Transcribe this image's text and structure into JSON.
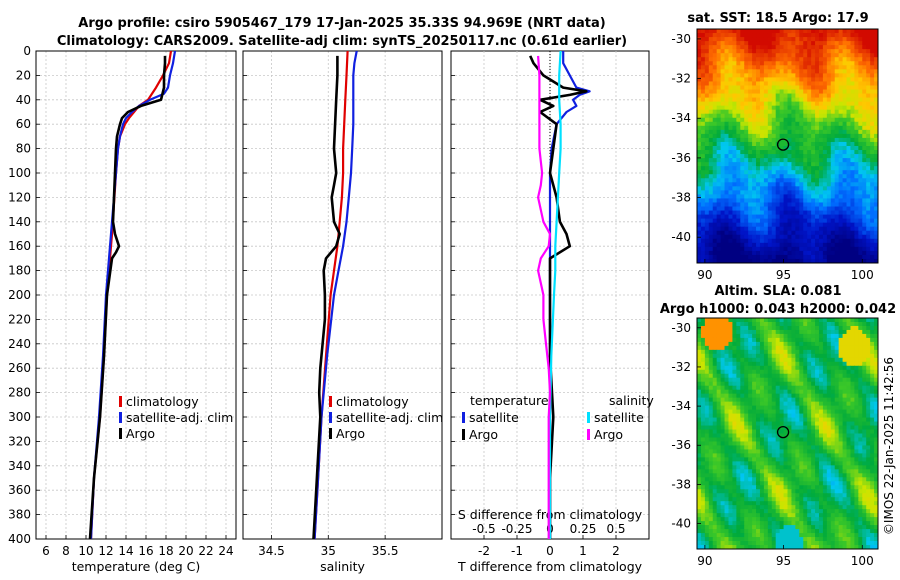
{
  "header": {
    "line1": "Argo profile: csiro 5905467_179 17-Jan-2025 35.33S 94.969E (NRT data)",
    "line2": "Climatology: CARS2009. Satellite-adj clim: synTS_20250117.nc (0.61d earlier)"
  },
  "colors": {
    "climatology": "#e00000",
    "satellite": "#1020e0",
    "argo": "#000000",
    "sat_salinity": "#00e0ff",
    "argo_salinity": "#ff00ff",
    "grid": "#c8c8c8"
  },
  "chart_data": [
    {
      "id": "temperature",
      "type": "line",
      "xlabel": "temperature (deg C)",
      "ylabel": "",
      "xlim": [
        5,
        25
      ],
      "ylim": [
        400,
        0
      ],
      "xticks": [
        6,
        8,
        10,
        12,
        14,
        16,
        18,
        20,
        22,
        24
      ],
      "yticks": [
        0,
        20,
        40,
        60,
        80,
        100,
        120,
        140,
        160,
        180,
        200,
        220,
        240,
        260,
        280,
        300,
        320,
        340,
        360,
        380,
        400
      ],
      "grid": true,
      "legend": [
        "climatology",
        "satellite-adj. clim",
        "Argo"
      ],
      "series": [
        {
          "name": "climatology",
          "color_key": "climatology",
          "depth": [
            0,
            10,
            20,
            30,
            40,
            45,
            50,
            55,
            60,
            70,
            80,
            100,
            150,
            200,
            250,
            300,
            350,
            400
          ],
          "values": [
            18.5,
            18.3,
            17.7,
            17.0,
            16.2,
            15.3,
            14.8,
            14.3,
            13.9,
            13.4,
            13.2,
            13.0,
            12.6,
            12.1,
            11.8,
            11.4,
            10.8,
            10.5
          ]
        },
        {
          "name": "satellite-adj. clim",
          "color_key": "satellite",
          "depth": [
            0,
            10,
            20,
            30,
            35,
            40,
            45,
            50,
            55,
            60,
            70,
            80,
            100,
            150,
            200,
            250,
            300,
            350,
            400
          ],
          "values": [
            18.9,
            18.7,
            18.4,
            18.2,
            17.8,
            16.4,
            15.3,
            14.6,
            14.0,
            13.7,
            13.4,
            13.2,
            13.0,
            12.5,
            12.0,
            11.7,
            11.3,
            10.8,
            10.5
          ]
        },
        {
          "name": "Argo",
          "color_key": "argo",
          "depth": [
            4,
            10,
            20,
            30,
            40,
            45,
            50,
            55,
            60,
            70,
            80,
            100,
            120,
            140,
            150,
            160,
            165,
            170,
            200,
            250,
            300,
            350,
            400
          ],
          "values": [
            17.9,
            17.9,
            17.8,
            17.8,
            17.5,
            15.5,
            14.2,
            13.6,
            13.4,
            13.1,
            13.0,
            12.9,
            12.8,
            12.7,
            12.9,
            13.3,
            13.0,
            12.6,
            12.1,
            11.8,
            11.4,
            10.8,
            10.4
          ]
        }
      ]
    },
    {
      "id": "salinity",
      "type": "line",
      "xlabel": "salinity",
      "ylabel": "",
      "xlim": [
        34.25,
        36.0
      ],
      "ylim": [
        400,
        0
      ],
      "xticks": [
        34.5,
        35,
        35.5
      ],
      "grid": true,
      "legend": [
        "climatology",
        "satellite-adj. clim",
        "Argo"
      ],
      "series": [
        {
          "name": "climatology",
          "color_key": "climatology",
          "depth": [
            0,
            20,
            40,
            60,
            80,
            100,
            120,
            140,
            160,
            180,
            200,
            250,
            300,
            350,
            400
          ],
          "values": [
            35.17,
            35.16,
            35.15,
            35.14,
            35.13,
            35.13,
            35.12,
            35.1,
            35.08,
            35.05,
            35.02,
            34.98,
            34.94,
            34.91,
            34.88
          ]
        },
        {
          "name": "satellite-adj. clim",
          "color_key": "satellite",
          "depth": [
            0,
            10,
            20,
            40,
            60,
            80,
            100,
            120,
            140,
            160,
            180,
            200,
            250,
            300,
            350,
            400
          ],
          "values": [
            35.25,
            35.23,
            35.22,
            35.22,
            35.22,
            35.21,
            35.2,
            35.18,
            35.16,
            35.13,
            35.09,
            35.05,
            34.99,
            34.94,
            34.91,
            34.88
          ]
        },
        {
          "name": "Argo",
          "color_key": "argo",
          "depth": [
            4,
            20,
            40,
            60,
            80,
            100,
            110,
            120,
            140,
            150,
            160,
            170,
            180,
            200,
            220,
            240,
            260,
            280,
            300,
            350,
            400
          ],
          "values": [
            35.08,
            35.08,
            35.07,
            35.06,
            35.05,
            35.07,
            35.05,
            35.03,
            35.05,
            35.1,
            35.07,
            34.98,
            34.96,
            34.97,
            34.97,
            34.95,
            34.93,
            34.92,
            34.93,
            34.9,
            34.87
          ]
        }
      ]
    },
    {
      "id": "difference",
      "type": "line",
      "xlabel": "T difference from climatology",
      "xlabel2": "S difference from climatology",
      "ylabel": "",
      "xlim": [
        -3,
        3
      ],
      "x2lim": [
        -0.75,
        0.75
      ],
      "ylim": [
        400,
        0
      ],
      "xticks": [
        -2,
        -1,
        0,
        1,
        2
      ],
      "x2ticks": [
        "-0.5",
        "-0.25",
        "0",
        "0.25",
        "0.5"
      ],
      "grid": true,
      "legend_titles": [
        "temperature",
        "salinity"
      ],
      "legend": [
        "satellite",
        "Argo",
        "satellite",
        "Argo"
      ],
      "series": [
        {
          "name": "T satellite",
          "axis": "T",
          "color_key": "satellite",
          "depth": [
            0,
            10,
            20,
            30,
            33,
            36,
            40,
            45,
            50,
            60,
            80,
            100,
            150,
            200,
            300,
            400
          ],
          "values": [
            0.4,
            0.4,
            0.6,
            0.8,
            1.2,
            0.9,
            0.7,
            0.8,
            0.5,
            0.2,
            0.05,
            0.0,
            0.0,
            0.0,
            0.0,
            0.0
          ]
        },
        {
          "name": "T Argo",
          "axis": "T",
          "color_key": "argo",
          "depth": [
            4,
            10,
            20,
            30,
            33,
            36,
            40,
            45,
            50,
            60,
            80,
            100,
            120,
            140,
            150,
            160,
            170,
            200,
            250,
            300,
            350,
            400
          ],
          "values": [
            -0.6,
            -0.5,
            -0.2,
            0.4,
            1.1,
            0.6,
            -0.3,
            0.1,
            -0.3,
            0.2,
            0.1,
            0.0,
            0.2,
            0.3,
            0.5,
            0.6,
            0.0,
            0.0,
            0.0,
            0.1,
            0.0,
            0.0
          ]
        },
        {
          "name": "S satellite",
          "axis": "S",
          "color_key": "sat_salinity",
          "depth": [
            0,
            20,
            40,
            60,
            80,
            100,
            120,
            140,
            160,
            180,
            200,
            250,
            300,
            400
          ],
          "values": [
            0.08,
            0.07,
            0.07,
            0.08,
            0.08,
            0.07,
            0.06,
            0.05,
            0.04,
            0.04,
            0.03,
            0.01,
            0.0,
            0.0
          ]
        },
        {
          "name": "S Argo",
          "axis": "S",
          "color_key": "argo_salinity",
          "depth": [
            4,
            20,
            40,
            60,
            80,
            100,
            110,
            120,
            140,
            150,
            160,
            170,
            180,
            200,
            220,
            240,
            260,
            280,
            300,
            350,
            400
          ],
          "values": [
            -0.09,
            -0.08,
            -0.08,
            -0.08,
            -0.08,
            -0.06,
            -0.07,
            -0.09,
            -0.05,
            0.0,
            -0.01,
            -0.07,
            -0.09,
            -0.05,
            -0.05,
            -0.03,
            -0.01,
            0.0,
            -0.01,
            -0.01,
            -0.01
          ]
        }
      ]
    },
    {
      "id": "sst_map",
      "type": "heatmap",
      "title": "sat. SST: 18.5 Argo: 17.9",
      "xlim": [
        89.5,
        101
      ],
      "ylim": [
        -41.3,
        -29.5
      ],
      "xticks": [
        90,
        95,
        100
      ],
      "yticks": [
        -30,
        -32,
        -34,
        -36,
        -38,
        -40
      ],
      "float_position": {
        "lon": 94.969,
        "lat": -35.33
      }
    },
    {
      "id": "sla_map",
      "type": "heatmap",
      "title": "Altim. SLA: 0.081",
      "subtitle": "Argo h1000: 0.043 h2000: 0.042",
      "xlim": [
        89.5,
        101
      ],
      "ylim": [
        -41.3,
        -29.5
      ],
      "xticks": [
        90,
        95,
        100
      ],
      "yticks": [
        -30,
        -32,
        -34,
        -36,
        -38,
        -40
      ],
      "float_position": {
        "lon": 94.969,
        "lat": -35.33
      }
    }
  ],
  "credit": "©IMOS 22-Jan-2025 11:42:56"
}
